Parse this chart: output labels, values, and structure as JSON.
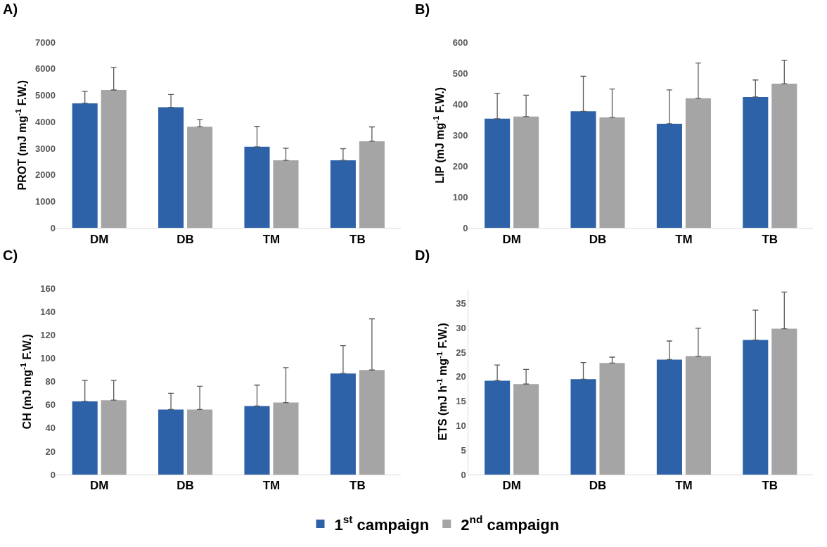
{
  "chart_data": [
    {
      "type": "bar",
      "title": "A)",
      "ylabel": "PROT (mJ mg$^{-1}$ F.W.)",
      "categories": [
        "DM",
        "DB",
        "TM",
        "TB"
      ],
      "ylim": [
        0,
        7000
      ],
      "yticks": [
        0,
        1000,
        2000,
        3000,
        4000,
        5000,
        6000,
        7000
      ],
      "grid": false,
      "legend": "bottom",
      "series": [
        {
          "name": "1$^{st}$ campaign",
          "color": "#2e62a8",
          "values": [
            4700,
            4550,
            3060,
            2550
          ],
          "errors": [
            [
              4700,
              5150
            ],
            [
              4550,
              5030
            ],
            [
              3060,
              3830
            ],
            [
              2550,
              2990
            ]
          ]
        },
        {
          "name": "2$^{nd}$ campaign",
          "color": "#a5a5a5",
          "values": [
            5200,
            3820,
            2550,
            3270
          ],
          "errors": [
            [
              5200,
              6050
            ],
            [
              3820,
              4090
            ],
            [
              2550,
              3010
            ],
            [
              3270,
              3810
            ]
          ]
        }
      ]
    },
    {
      "type": "bar",
      "title": "B)",
      "ylabel": "LIP (mJ mg$^{-1}$ F.W.)",
      "categories": [
        "DM",
        "DB",
        "TM",
        "TB"
      ],
      "ylim": [
        0,
        600
      ],
      "yticks": [
        0,
        100,
        200,
        300,
        400,
        500,
        600
      ],
      "grid": false,
      "legend": "bottom",
      "series": [
        {
          "name": "1$^{st}$ campaign",
          "color": "#2e62a8",
          "values": [
            353,
            377,
            337,
            423
          ],
          "errors": [
            [
              353,
              435
            ],
            [
              377,
              490
            ],
            [
              337,
              446
            ],
            [
              423,
              478
            ]
          ]
        },
        {
          "name": "2$^{nd}$ campaign",
          "color": "#a5a5a5",
          "values": [
            360,
            357,
            419,
            466
          ],
          "errors": [
            [
              360,
              429
            ],
            [
              357,
              449
            ],
            [
              419,
              533
            ],
            [
              466,
              542
            ]
          ]
        }
      ]
    },
    {
      "type": "bar",
      "title": "C)",
      "ylabel": "CH (mJ mg$^{-1}$ F.W.)",
      "categories": [
        "DM",
        "DB",
        "TM",
        "TB"
      ],
      "ylim": [
        0,
        160
      ],
      "yticks": [
        0,
        20,
        40,
        60,
        80,
        100,
        120,
        140,
        160
      ],
      "grid": false,
      "legend": "bottom",
      "series": [
        {
          "name": "1$^{st}$ campaign",
          "color": "#2e62a8",
          "values": [
            63,
            56,
            59,
            87
          ],
          "errors": [
            [
              63,
              81
            ],
            [
              56,
              70
            ],
            [
              59,
              77
            ],
            [
              87,
              111
            ]
          ]
        },
        {
          "name": "2$^{nd}$ campaign",
          "color": "#a5a5a5",
          "values": [
            64,
            56,
            62,
            90
          ],
          "errors": [
            [
              64,
              81
            ],
            [
              56,
              76
            ],
            [
              62,
              92
            ],
            [
              90,
              134
            ]
          ]
        }
      ]
    },
    {
      "type": "bar",
      "title": "D)",
      "ylabel": "ETS (mJ h$^{-1}$ mg$^{-1}$ F.W.)",
      "categories": [
        "DM",
        "DB",
        "TM",
        "TB"
      ],
      "ylim": [
        0,
        38
      ],
      "yticks": [
        0,
        5,
        10,
        15,
        20,
        25,
        30,
        35
      ],
      "grid": false,
      "legend": "bottom",
      "series": [
        {
          "name": "1$^{st}$ campaign",
          "color": "#2e62a8",
          "values": [
            19.2,
            19.5,
            23.5,
            27.5
          ],
          "errors": [
            [
              19.2,
              22.4
            ],
            [
              19.5,
              22.9
            ],
            [
              23.5,
              27.3
            ],
            [
              27.5,
              33.6
            ]
          ]
        },
        {
          "name": "2$^{nd}$ campaign",
          "color": "#a5a5a5",
          "values": [
            18.5,
            22.8,
            24.2,
            29.8
          ],
          "errors": [
            [
              18.5,
              21.5
            ],
            [
              22.8,
              24.0
            ],
            [
              24.2,
              29.9
            ],
            [
              29.8,
              37.3
            ]
          ]
        }
      ]
    }
  ]
}
